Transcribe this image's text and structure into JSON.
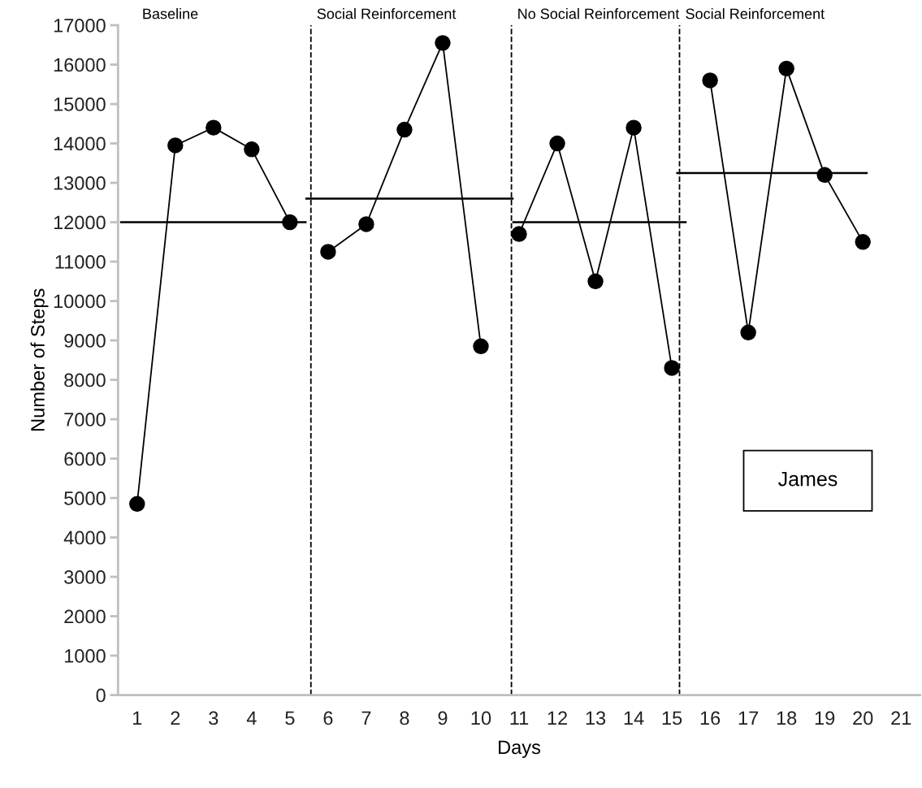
{
  "chart_data": {
    "type": "line",
    "xlabel": "Days",
    "ylabel": "Number of Steps",
    "x": [
      1,
      2,
      3,
      4,
      5,
      6,
      7,
      8,
      9,
      10,
      11,
      12,
      13,
      14,
      15,
      16,
      17,
      18,
      19,
      20
    ],
    "xlim": [
      0.5,
      21.5
    ],
    "xticks": [
      1,
      2,
      3,
      4,
      5,
      6,
      7,
      8,
      9,
      10,
      11,
      12,
      13,
      14,
      15,
      16,
      17,
      18,
      19,
      20,
      21
    ],
    "ylim": [
      0,
      17000
    ],
    "yticks": [
      0,
      1000,
      2000,
      3000,
      4000,
      5000,
      6000,
      7000,
      8000,
      9000,
      10000,
      11000,
      12000,
      13000,
      14000,
      15000,
      16000,
      17000
    ],
    "marker": "circle",
    "grid": false,
    "legend": false,
    "series": [
      {
        "color": "#000000",
        "values": [
          4850,
          13950,
          14400,
          13850,
          12000,
          null,
          null,
          null,
          null,
          null,
          null,
          null,
          null,
          null,
          null,
          null,
          null,
          null,
          null,
          null
        ]
      },
      {
        "color": "#000000",
        "values": [
          null,
          null,
          null,
          null,
          null,
          11250,
          11950,
          14350,
          16550,
          8850,
          null,
          null,
          null,
          null,
          null,
          null,
          null,
          null,
          null,
          null
        ]
      },
      {
        "color": "#000000",
        "values": [
          null,
          null,
          null,
          null,
          null,
          null,
          null,
          null,
          null,
          null,
          11700,
          14000,
          10500,
          14400,
          8300,
          null,
          null,
          null,
          null,
          null
        ]
      },
      {
        "color": "#000000",
        "values": [
          null,
          null,
          null,
          null,
          null,
          null,
          null,
          null,
          null,
          null,
          null,
          null,
          null,
          null,
          null,
          15600,
          9200,
          15900,
          13200,
          11500
        ]
      },
      {
        "type": "line",
        "marker": "none",
        "color": "#000000",
        "x": [
          0.58,
          5.41
        ],
        "values": [
          12000,
          12000
        ]
      },
      {
        "type": "line",
        "marker": "none",
        "color": "#000000",
        "x": [
          5.43,
          10.83
        ],
        "values": [
          12600,
          12600
        ]
      },
      {
        "type": "line",
        "marker": "none",
        "color": "#000000",
        "x": [
          10.85,
          15.36
        ],
        "values": [
          12000,
          12000
        ]
      },
      {
        "type": "line",
        "marker": "none",
        "color": "#000000",
        "x": [
          15.14,
          20.1
        ],
        "values": [
          13250,
          13250
        ]
      }
    ],
    "ref_lines": [
      {
        "axis": "x",
        "value": 5.55,
        "label": "Social Reinforcement",
        "line_style": "dashed",
        "color": "#000000"
      },
      {
        "axis": "x",
        "value": 10.8,
        "label": "No Social Reinforcement",
        "line_style": "dashed",
        "color": "#000000"
      },
      {
        "axis": "x",
        "value": 15.2,
        "label": "Social Reinforcement",
        "line_style": "dashed",
        "color": "#000000"
      }
    ],
    "annotations": [
      "Baseline",
      "James"
    ]
  }
}
